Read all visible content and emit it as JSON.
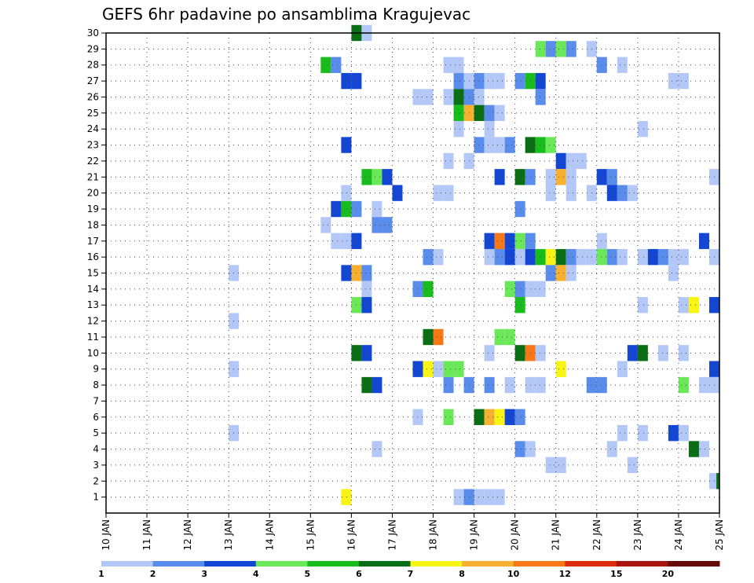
{
  "chart_data": {
    "type": "heatmap",
    "title": "GEFS 6hr padavine po ansamblima Kragujevac",
    "x_tick_labels": [
      "10 JAN",
      "11 JAN",
      "12 JAN",
      "13 JAN",
      "14 JAN",
      "15 JAN",
      "16 JAN",
      "17 JAN",
      "18 JAN",
      "19 JAN",
      "20 JAN",
      "21 JAN",
      "22 JAN",
      "23 JAN",
      "24 JAN",
      "25 JAN"
    ],
    "y_tick_labels": [
      "1",
      "2",
      "3",
      "4",
      "5",
      "6",
      "7",
      "8",
      "9",
      "10",
      "11",
      "12",
      "13",
      "14",
      "15",
      "16",
      "17",
      "18",
      "19",
      "20",
      "21",
      "22",
      "23",
      "24",
      "25",
      "26",
      "27",
      "28",
      "29",
      "30"
    ],
    "xlim": [
      0,
      60
    ],
    "ylim": [
      0,
      30
    ],
    "x_unit": "6-hour steps from 10 JAN 00Z",
    "y_unit": "ensemble member",
    "grid": true,
    "colorbar": {
      "labels": [
        "1",
        "2",
        "3",
        "4",
        "5",
        "6",
        "7",
        "8",
        "10",
        "12",
        "15",
        "20"
      ],
      "colors": [
        "#b4c8f8",
        "#5a8cec",
        "#1446d4",
        "#6ae858",
        "#18bc1c",
        "#0a6e14",
        "#f8f414",
        "#f8b030",
        "#f87818",
        "#dc2c10",
        "#aa1410",
        "#660a0a"
      ]
    },
    "cells": [
      [
        24.5,
        30,
        "#0a6e14"
      ],
      [
        25.5,
        30,
        "#b4c8f8"
      ],
      [
        42.5,
        29,
        "#6ae858"
      ],
      [
        43.5,
        29,
        "#5a8cec"
      ],
      [
        44.5,
        29,
        "#6ae858"
      ],
      [
        45.5,
        29,
        "#5a8cec"
      ],
      [
        47.5,
        29,
        "#b4c8f8"
      ],
      [
        21.5,
        28,
        "#18bc1c"
      ],
      [
        22.5,
        28,
        "#5a8cec"
      ],
      [
        33.5,
        28,
        "#b4c8f8"
      ],
      [
        34.5,
        28,
        "#b4c8f8"
      ],
      [
        48.5,
        28,
        "#5a8cec"
      ],
      [
        50.5,
        28,
        "#b4c8f8"
      ],
      [
        23.5,
        27,
        "#1446d4"
      ],
      [
        24.5,
        27,
        "#1446d4"
      ],
      [
        34.5,
        27,
        "#5a8cec"
      ],
      [
        35.5,
        27,
        "#b4c8f8"
      ],
      [
        36.5,
        27,
        "#5a8cec"
      ],
      [
        37.5,
        27,
        "#b4c8f8"
      ],
      [
        38.5,
        27,
        "#b4c8f8"
      ],
      [
        40.5,
        27,
        "#5a8cec"
      ],
      [
        41.5,
        27,
        "#18bc1c"
      ],
      [
        42.5,
        27,
        "#1446d4"
      ],
      [
        55.5,
        27,
        "#b4c8f8"
      ],
      [
        56.5,
        27,
        "#b4c8f8"
      ],
      [
        30.5,
        26,
        "#b4c8f8"
      ],
      [
        31.5,
        26,
        "#b4c8f8"
      ],
      [
        33.5,
        26,
        "#b4c8f8"
      ],
      [
        34.5,
        26,
        "#0a6e14"
      ],
      [
        35.5,
        26,
        "#5a8cec"
      ],
      [
        36.5,
        26,
        "#b4c8f8"
      ],
      [
        42.5,
        26,
        "#5a8cec"
      ],
      [
        34.5,
        25,
        "#18bc1c"
      ],
      [
        35.5,
        25,
        "#f8b030"
      ],
      [
        36.5,
        25,
        "#0a6e14"
      ],
      [
        37.5,
        25,
        "#5a8cec"
      ],
      [
        38.5,
        25,
        "#b4c8f8"
      ],
      [
        34.5,
        24,
        "#b4c8f8"
      ],
      [
        37.5,
        24,
        "#b4c8f8"
      ],
      [
        52.5,
        24,
        "#b4c8f8"
      ],
      [
        23.5,
        23,
        "#1446d4"
      ],
      [
        36.5,
        23,
        "#5a8cec"
      ],
      [
        37.5,
        23,
        "#b4c8f8"
      ],
      [
        38.5,
        23,
        "#b4c8f8"
      ],
      [
        39.5,
        23,
        "#5a8cec"
      ],
      [
        41.5,
        23,
        "#0a6e14"
      ],
      [
        42.5,
        23,
        "#18bc1c"
      ],
      [
        43.5,
        23,
        "#6ae858"
      ],
      [
        33.5,
        22,
        "#b4c8f8"
      ],
      [
        35.5,
        22,
        "#b4c8f8"
      ],
      [
        44.5,
        22,
        "#1446d4"
      ],
      [
        45.5,
        22,
        "#b4c8f8"
      ],
      [
        46.5,
        22,
        "#b4c8f8"
      ],
      [
        25.5,
        21,
        "#18bc1c"
      ],
      [
        26.5,
        21,
        "#6ae858"
      ],
      [
        27.5,
        21,
        "#1446d4"
      ],
      [
        38.5,
        21,
        "#1446d4"
      ],
      [
        40.5,
        21,
        "#0a6e14"
      ],
      [
        41.5,
        21,
        "#5a8cec"
      ],
      [
        43.5,
        21,
        "#b4c8f8"
      ],
      [
        44.5,
        21,
        "#f8b030"
      ],
      [
        45.5,
        21,
        "#b4c8f8"
      ],
      [
        48.5,
        21,
        "#1446d4"
      ],
      [
        49.5,
        21,
        "#5a8cec"
      ],
      [
        59.5,
        21,
        "#b4c8f8"
      ],
      [
        23.5,
        20,
        "#b4c8f8"
      ],
      [
        28.5,
        20,
        "#1446d4"
      ],
      [
        32.5,
        20,
        "#b4c8f8"
      ],
      [
        33.5,
        20,
        "#b4c8f8"
      ],
      [
        43.5,
        20,
        "#b4c8f8"
      ],
      [
        45.5,
        20,
        "#b4c8f8"
      ],
      [
        47.5,
        20,
        "#b4c8f8"
      ],
      [
        49.5,
        20,
        "#1446d4"
      ],
      [
        50.5,
        20,
        "#5a8cec"
      ],
      [
        51.5,
        20,
        "#b4c8f8"
      ],
      [
        22.5,
        19,
        "#1446d4"
      ],
      [
        23.5,
        19,
        "#18bc1c"
      ],
      [
        24.5,
        19,
        "#5a8cec"
      ],
      [
        26.5,
        19,
        "#b4c8f8"
      ],
      [
        40.5,
        19,
        "#5a8cec"
      ],
      [
        21.5,
        18,
        "#b4c8f8"
      ],
      [
        26.5,
        18,
        "#5a8cec"
      ],
      [
        27.5,
        18,
        "#5a8cec"
      ],
      [
        22.5,
        17,
        "#b4c8f8"
      ],
      [
        23.5,
        17,
        "#b4c8f8"
      ],
      [
        24.5,
        17,
        "#1446d4"
      ],
      [
        37.5,
        17,
        "#1446d4"
      ],
      [
        38.5,
        17,
        "#f87818"
      ],
      [
        39.5,
        17,
        "#1446d4"
      ],
      [
        40.5,
        17,
        "#6ae858"
      ],
      [
        41.5,
        17,
        "#5a8cec"
      ],
      [
        48.5,
        17,
        "#b4c8f8"
      ],
      [
        58.5,
        17,
        "#1446d4"
      ],
      [
        31.5,
        16,
        "#5a8cec"
      ],
      [
        32.5,
        16,
        "#b4c8f8"
      ],
      [
        37.5,
        16,
        "#b4c8f8"
      ],
      [
        38.5,
        16,
        "#5a8cec"
      ],
      [
        39.5,
        16,
        "#1446d4"
      ],
      [
        40.5,
        16,
        "#b4c8f8"
      ],
      [
        41.5,
        16,
        "#1446d4"
      ],
      [
        42.5,
        16,
        "#18bc1c"
      ],
      [
        43.5,
        16,
        "#f8f414"
      ],
      [
        44.5,
        16,
        "#0a6e14"
      ],
      [
        45.5,
        16,
        "#5a8cec"
      ],
      [
        46.5,
        16,
        "#b4c8f8"
      ],
      [
        47.5,
        16,
        "#b4c8f8"
      ],
      [
        48.5,
        16,
        "#6ae858"
      ],
      [
        49.5,
        16,
        "#5a8cec"
      ],
      [
        50.5,
        16,
        "#b4c8f8"
      ],
      [
        52.5,
        16,
        "#b4c8f8"
      ],
      [
        53.5,
        16,
        "#1446d4"
      ],
      [
        54.5,
        16,
        "#5a8cec"
      ],
      [
        55.5,
        16,
        "#b4c8f8"
      ],
      [
        56.5,
        16,
        "#b4c8f8"
      ],
      [
        59.5,
        16,
        "#b4c8f8"
      ],
      [
        12.5,
        15,
        "#b4c8f8"
      ],
      [
        23.5,
        15,
        "#1446d4"
      ],
      [
        24.5,
        15,
        "#f8b030"
      ],
      [
        25.5,
        15,
        "#5a8cec"
      ],
      [
        43.5,
        15,
        "#5a8cec"
      ],
      [
        44.5,
        15,
        "#f8b030"
      ],
      [
        45.5,
        15,
        "#b4c8f8"
      ],
      [
        55.5,
        15,
        "#b4c8f8"
      ],
      [
        25.5,
        14,
        "#b4c8f8"
      ],
      [
        30.5,
        14,
        "#5a8cec"
      ],
      [
        31.5,
        14,
        "#18bc1c"
      ],
      [
        39.5,
        14,
        "#6ae858"
      ],
      [
        40.5,
        14,
        "#5a8cec"
      ],
      [
        41.5,
        14,
        "#b4c8f8"
      ],
      [
        42.5,
        14,
        "#b4c8f8"
      ],
      [
        24.5,
        13,
        "#6ae858"
      ],
      [
        25.5,
        13,
        "#1446d4"
      ],
      [
        40.5,
        13,
        "#18bc1c"
      ],
      [
        52.5,
        13,
        "#b4c8f8"
      ],
      [
        56.5,
        13,
        "#b4c8f8"
      ],
      [
        57.5,
        13,
        "#f8f414"
      ],
      [
        59.5,
        13,
        "#1446d4"
      ],
      [
        12.5,
        12,
        "#b4c8f8"
      ],
      [
        31.5,
        11,
        "#0a6e14"
      ],
      [
        32.5,
        11,
        "#f87818"
      ],
      [
        38.5,
        11,
        "#6ae858"
      ],
      [
        39.5,
        11,
        "#6ae858"
      ],
      [
        24.5,
        10,
        "#0a6e14"
      ],
      [
        25.5,
        10,
        "#1446d4"
      ],
      [
        37.5,
        10,
        "#b4c8f8"
      ],
      [
        40.5,
        10,
        "#0a6e14"
      ],
      [
        41.5,
        10,
        "#f87818"
      ],
      [
        42.5,
        10,
        "#b4c8f8"
      ],
      [
        51.5,
        10,
        "#1446d4"
      ],
      [
        52.5,
        10,
        "#0a6e14"
      ],
      [
        54.5,
        10,
        "#b4c8f8"
      ],
      [
        56.5,
        10,
        "#b4c8f8"
      ],
      [
        12.5,
        9,
        "#b4c8f8"
      ],
      [
        30.5,
        9,
        "#1446d4"
      ],
      [
        31.5,
        9,
        "#f8f414"
      ],
      [
        32.5,
        9,
        "#b4c8f8"
      ],
      [
        33.5,
        9,
        "#6ae858"
      ],
      [
        34.5,
        9,
        "#6ae858"
      ],
      [
        44.5,
        9,
        "#f8f414"
      ],
      [
        50.5,
        9,
        "#b4c8f8"
      ],
      [
        59.5,
        9,
        "#1446d4"
      ],
      [
        25.5,
        8,
        "#0a6e14"
      ],
      [
        26.5,
        8,
        "#1446d4"
      ],
      [
        33.5,
        8,
        "#5a8cec"
      ],
      [
        35.5,
        8,
        "#5a8cec"
      ],
      [
        37.5,
        8,
        "#5a8cec"
      ],
      [
        39.5,
        8,
        "#b4c8f8"
      ],
      [
        41.5,
        8,
        "#b4c8f8"
      ],
      [
        42.5,
        8,
        "#b4c8f8"
      ],
      [
        47.5,
        8,
        "#5a8cec"
      ],
      [
        48.5,
        8,
        "#5a8cec"
      ],
      [
        56.5,
        8,
        "#6ae858"
      ],
      [
        58.5,
        8,
        "#b4c8f8"
      ],
      [
        59.5,
        8,
        "#b4c8f8"
      ],
      [
        30.5,
        6,
        "#b4c8f8"
      ],
      [
        33.5,
        6,
        "#6ae858"
      ],
      [
        36.5,
        6,
        "#0a6e14"
      ],
      [
        37.5,
        6,
        "#f8b030"
      ],
      [
        38.5,
        6,
        "#f8f414"
      ],
      [
        39.5,
        6,
        "#1446d4"
      ],
      [
        40.5,
        6,
        "#5a8cec"
      ],
      [
        12.5,
        5,
        "#b4c8f8"
      ],
      [
        50.5,
        5,
        "#b4c8f8"
      ],
      [
        52.5,
        5,
        "#b4c8f8"
      ],
      [
        55.5,
        5,
        "#1446d4"
      ],
      [
        56.5,
        5,
        "#b4c8f8"
      ],
      [
        26.5,
        4,
        "#b4c8f8"
      ],
      [
        40.5,
        4,
        "#5a8cec"
      ],
      [
        41.5,
        4,
        "#b4c8f8"
      ],
      [
        49.5,
        4,
        "#b4c8f8"
      ],
      [
        57.5,
        4,
        "#0a6e14"
      ],
      [
        58.5,
        4,
        "#b4c8f8"
      ],
      [
        43.5,
        3,
        "#b4c8f8"
      ],
      [
        44.5,
        3,
        "#b4c8f8"
      ],
      [
        51.5,
        3,
        "#b4c8f8"
      ],
      [
        59.5,
        2,
        "#b4c8f8"
      ],
      [
        60.2,
        2,
        "#0a6e14"
      ],
      [
        23.5,
        1,
        "#f8f414"
      ],
      [
        34.5,
        1,
        "#b4c8f8"
      ],
      [
        35.5,
        1,
        "#5a8cec"
      ],
      [
        36.5,
        1,
        "#b4c8f8"
      ],
      [
        37.5,
        1,
        "#b4c8f8"
      ],
      [
        38.5,
        1,
        "#b4c8f8"
      ]
    ]
  }
}
